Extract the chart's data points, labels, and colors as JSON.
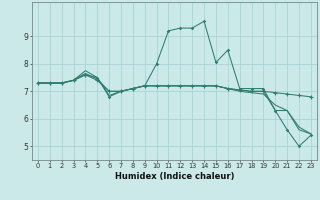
{
  "xlabel": "Humidex (Indice chaleur)",
  "bg_color": "#cce9e9",
  "line_color": "#2e7d6e",
  "grid_color": "#aad4d4",
  "xlim": [
    -0.5,
    23.5
  ],
  "ylim": [
    4.5,
    10.25
  ],
  "xticks": [
    0,
    1,
    2,
    3,
    4,
    5,
    6,
    7,
    8,
    9,
    10,
    11,
    12,
    13,
    14,
    15,
    16,
    17,
    18,
    19,
    20,
    21,
    22,
    23
  ],
  "yticks": [
    5,
    6,
    7,
    8,
    9
  ],
  "series": [
    {
      "y": [
        7.3,
        7.3,
        7.3,
        7.4,
        7.6,
        7.5,
        6.8,
        7.0,
        7.1,
        7.2,
        8.0,
        9.2,
        9.3,
        9.3,
        9.55,
        8.05,
        8.5,
        7.1,
        7.1,
        7.05,
        7.05,
        7.05,
        7.05,
        7.05
      ],
      "marker": true
    },
    {
      "y": [
        7.3,
        7.3,
        7.3,
        7.4,
        7.75,
        7.5,
        6.85,
        7.0,
        7.1,
        7.2,
        7.2,
        7.2,
        7.2,
        7.2,
        7.2,
        7.2,
        7.1,
        7.05,
        7.0,
        7.0,
        6.95,
        6.9,
        6.85,
        6.8
      ],
      "marker": false
    },
    {
      "y": [
        7.3,
        7.3,
        7.3,
        7.4,
        7.6,
        7.4,
        6.9,
        7.0,
        7.1,
        7.2,
        7.2,
        7.2,
        7.2,
        7.2,
        7.2,
        7.2,
        7.1,
        7.05,
        7.0,
        7.0,
        6.3,
        6.3,
        5.7,
        5.45
      ],
      "marker": false
    },
    {
      "y": [
        7.3,
        7.3,
        7.3,
        7.4,
        7.65,
        7.45,
        7.0,
        7.0,
        7.1,
        7.2,
        7.2,
        7.2,
        7.2,
        7.2,
        7.2,
        7.2,
        7.1,
        7.05,
        7.0,
        7.0,
        6.95,
        6.5,
        5.9,
        5.45
      ],
      "marker": false
    }
  ],
  "series_main": {
    "y": [
      7.3,
      7.3,
      7.3,
      7.4,
      7.6,
      7.5,
      6.8,
      7.0,
      7.1,
      7.2,
      8.0,
      9.2,
      9.3,
      9.3,
      9.55,
      8.05,
      8.5,
      7.1,
      7.1,
      7.1,
      6.3,
      5.6,
      5.0,
      5.4
    ]
  },
  "series_long1": {
    "y": [
      7.3,
      7.3,
      7.3,
      7.4,
      7.65,
      7.45,
      7.0,
      7.0,
      7.1,
      7.2,
      7.2,
      7.2,
      7.2,
      7.2,
      7.2,
      7.2,
      7.1,
      7.0,
      6.95,
      6.9,
      6.5,
      6.3,
      5.6,
      5.45
    ]
  },
  "series_long2": {
    "y": [
      7.3,
      7.3,
      7.3,
      7.4,
      7.6,
      7.4,
      7.0,
      7.0,
      7.1,
      7.2,
      7.2,
      7.2,
      7.2,
      7.2,
      7.2,
      7.2,
      7.1,
      7.05,
      7.0,
      7.0,
      6.95,
      6.9,
      6.85,
      6.8
    ]
  },
  "series_drop": {
    "y": [
      7.3,
      7.3,
      7.3,
      7.4,
      7.75,
      7.5,
      6.85,
      7.0,
      7.1,
      7.2,
      7.2,
      7.2,
      7.2,
      7.2,
      7.2,
      7.2,
      7.1,
      7.05,
      7.0,
      7.0,
      6.3,
      6.3,
      5.7,
      5.45
    ]
  }
}
